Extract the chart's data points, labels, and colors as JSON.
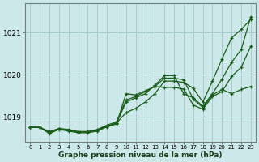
{
  "title": "Graphe pression niveau de la mer (hPa)",
  "background_color": "#cce8e8",
  "grid_color": "#aacccc",
  "line_color": "#1a5c1a",
  "xlim": [
    -0.5,
    23.5
  ],
  "ylim": [
    1018.4,
    1021.7
  ],
  "yticks": [
    1019,
    1020,
    1021
  ],
  "xticks": [
    0,
    1,
    2,
    3,
    4,
    5,
    6,
    7,
    8,
    9,
    10,
    11,
    12,
    13,
    14,
    15,
    16,
    17,
    18,
    19,
    20,
    21,
    22,
    23
  ],
  "series": [
    [
      1018.75,
      1018.75,
      1018.62,
      1018.72,
      1018.68,
      1018.64,
      1018.64,
      1018.68,
      1018.78,
      1018.85,
      1019.1,
      1019.2,
      1019.35,
      1019.55,
      1019.85,
      1019.85,
      1019.82,
      1019.68,
      1019.35,
      1019.85,
      1020.38,
      1020.88,
      1021.08,
      1021.32
    ],
    [
      1018.75,
      1018.75,
      1018.6,
      1018.7,
      1018.66,
      1018.62,
      1018.62,
      1018.66,
      1018.76,
      1018.83,
      1019.55,
      1019.52,
      1019.62,
      1019.72,
      1019.92,
      1019.92,
      1019.88,
      1019.42,
      1019.22,
      1019.52,
      1019.65,
      1019.55,
      1019.65,
      1019.72
    ],
    [
      1018.75,
      1018.75,
      1018.62,
      1018.72,
      1018.68,
      1018.64,
      1018.64,
      1018.68,
      1018.78,
      1018.85,
      1019.35,
      1019.45,
      1019.55,
      1019.75,
      1019.98,
      1019.98,
      1019.55,
      1019.45,
      1019.25,
      1019.55,
      1019.9,
      1020.3,
      1020.6,
      1021.38
    ],
    [
      1018.75,
      1018.75,
      1018.65,
      1018.72,
      1018.7,
      1018.65,
      1018.65,
      1018.7,
      1018.8,
      1018.88,
      1019.4,
      1019.48,
      1019.6,
      1019.72,
      1019.7,
      1019.7,
      1019.66,
      1019.28,
      1019.18,
      1019.48,
      1019.6,
      1019.96,
      1020.18,
      1020.68
    ]
  ]
}
